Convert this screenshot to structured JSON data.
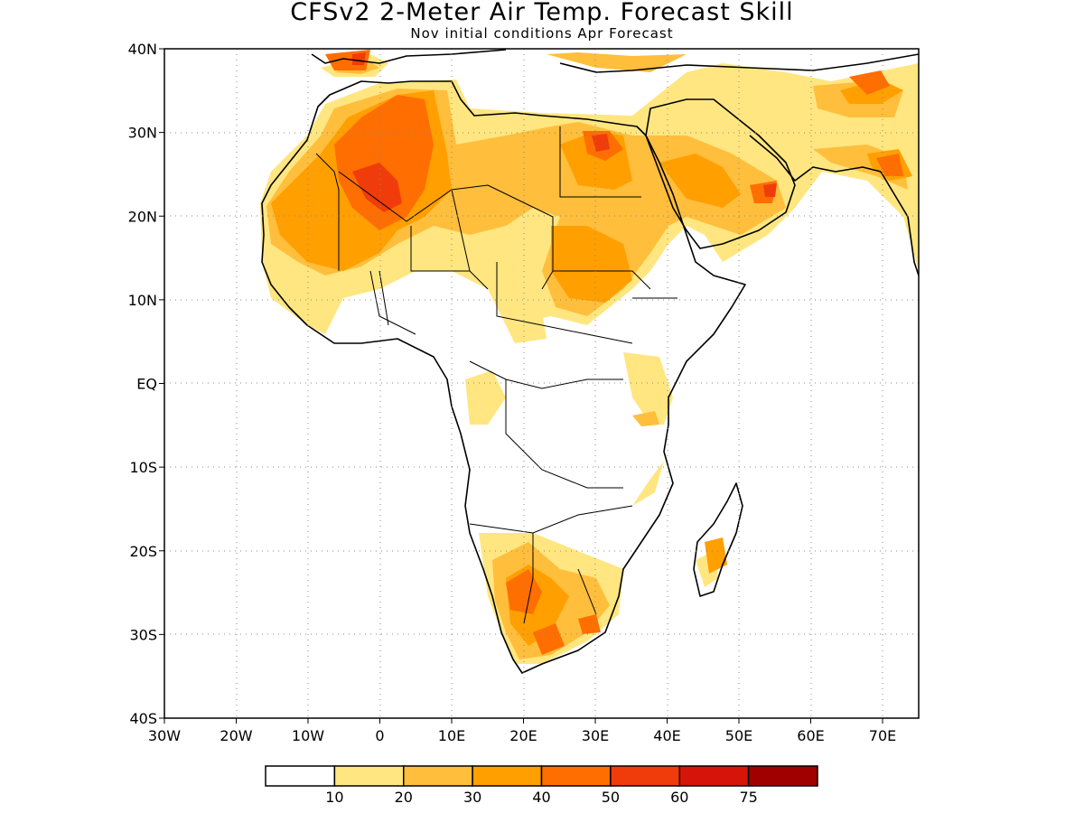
{
  "title": "CFSv2 2-Meter Air Temp. Forecast Skill",
  "subtitle": "Nov initial conditions  Apr Forecast",
  "map": {
    "lat_labels": [
      "40N",
      "30N",
      "20N",
      "10N",
      "EQ",
      "10S",
      "20S",
      "30S",
      "40S"
    ],
    "lon_labels": [
      "30W",
      "20W",
      "10W",
      "0",
      "10E",
      "20E",
      "30E",
      "40E",
      "50E",
      "60E",
      "70E"
    ],
    "lat_range": [
      -40,
      40
    ],
    "lon_range": [
      -30,
      75
    ],
    "grid": "dotted",
    "coastlines_color": "#000000"
  },
  "legend": {
    "boundaries": [
      "10",
      "20",
      "30",
      "40",
      "50",
      "60",
      "75"
    ],
    "colors": [
      "#ffffff",
      "#ffe680",
      "#ffbe3c",
      "#ff9f00",
      "#ff6e00",
      "#f03c0a",
      "#d7140a",
      "#a00000"
    ]
  }
}
